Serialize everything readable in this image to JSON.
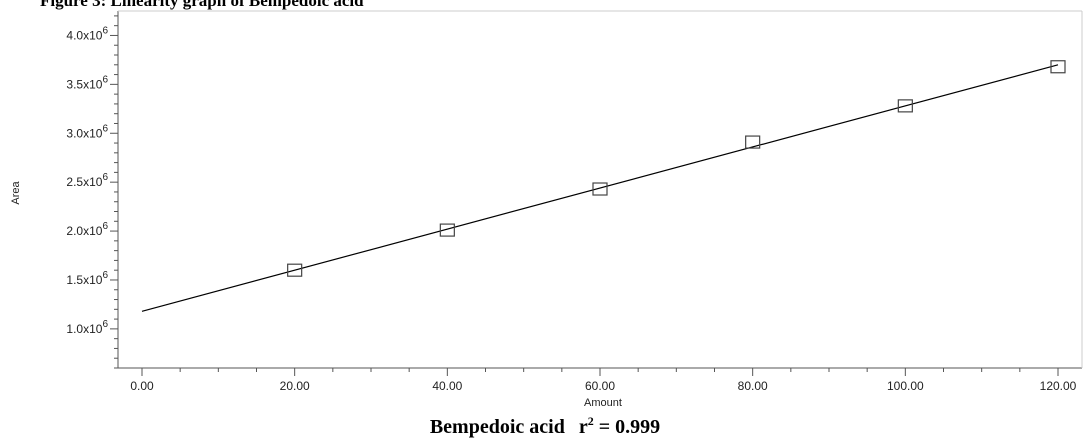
{
  "figure": {
    "header_text": "Figure 3: Linearity graph of Bempedoic acid",
    "caption": {
      "compound": "Bempedoic acid",
      "r": "r",
      "sq": "2",
      "value": " = 0.999"
    }
  },
  "chart_data": {
    "type": "scatter",
    "title": "",
    "xlabel": "Amount",
    "ylabel": "Area",
    "xlim": [
      0,
      120
    ],
    "ylim": [
      600000,
      4250000
    ],
    "x_ticks": [
      "0.00",
      "20.00",
      "40.00",
      "60.00",
      "80.00",
      "100.00",
      "120.00"
    ],
    "y_ticks": [
      {
        "value": 1000000,
        "mantissa": "1.0x10",
        "exp": "6"
      },
      {
        "value": 1500000,
        "mantissa": "1.5x10",
        "exp": "6"
      },
      {
        "value": 2000000,
        "mantissa": "2.0x10",
        "exp": "6"
      },
      {
        "value": 2500000,
        "mantissa": "2.5x10",
        "exp": "6"
      },
      {
        "value": 3000000,
        "mantissa": "3.0x10",
        "exp": "6"
      },
      {
        "value": 3500000,
        "mantissa": "3.5x10",
        "exp": "6"
      },
      {
        "value": 4000000,
        "mantissa": "4.0x10",
        "exp": "6"
      }
    ],
    "grid": false,
    "marker": "open-square",
    "series": [
      {
        "points": [
          {
            "x": 20,
            "y": 1600000
          },
          {
            "x": 40,
            "y": 2010000
          },
          {
            "x": 60,
            "y": 2430000
          },
          {
            "x": 80,
            "y": 2910000
          },
          {
            "x": 100,
            "y": 3280000
          },
          {
            "x": 120,
            "y": 3680000
          }
        ]
      }
    ],
    "fit_line": {
      "x": [
        0,
        120
      ],
      "y": [
        1180000,
        3700000
      ]
    },
    "colors": {
      "marker": "#444444",
      "line": "#000000",
      "axis": "#555555"
    }
  }
}
